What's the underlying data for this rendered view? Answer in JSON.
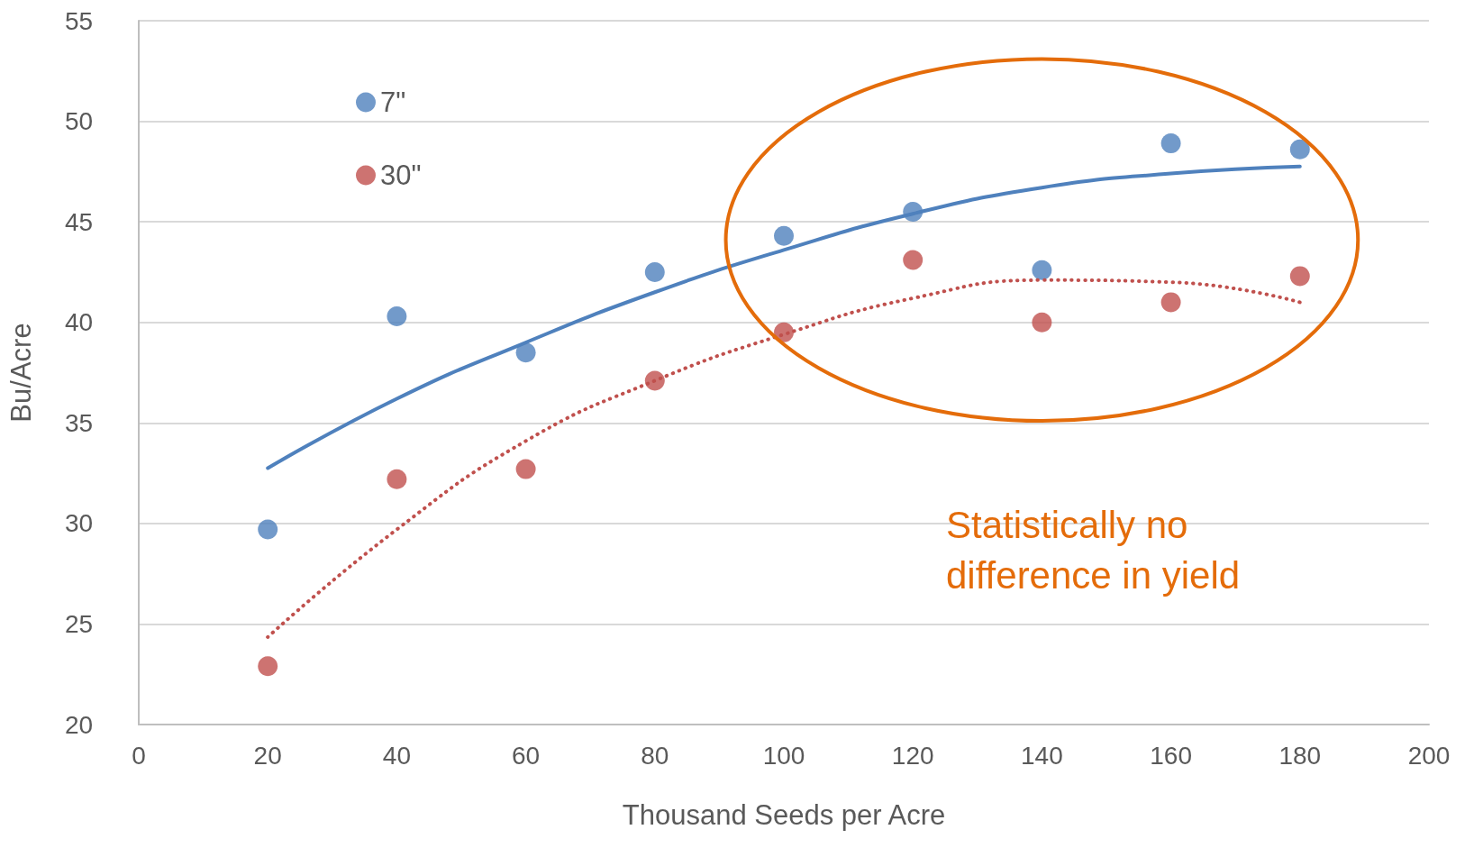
{
  "chart_data": {
    "type": "scatter",
    "xlabel": "Thousand Seeds per Acre",
    "ylabel": "Bu/Acre",
    "x": [
      20,
      40,
      60,
      80,
      100,
      120,
      140,
      160,
      180
    ],
    "xlim": [
      0,
      200
    ],
    "xticks": [
      0,
      20,
      40,
      60,
      80,
      100,
      120,
      140,
      160,
      180,
      200
    ],
    "ylim": [
      20,
      55
    ],
    "yticks": [
      20,
      25,
      30,
      35,
      40,
      45,
      50,
      55
    ],
    "grid": "y",
    "legend": "top left",
    "marker": "circle",
    "annotations": [
      "Statistically no difference in yield"
    ],
    "series": [
      {
        "name": "7\"",
        "color": "#4f81bd",
        "values": [
          29.7,
          40.3,
          38.5,
          42.5,
          44.3,
          45.5,
          42.6,
          48.9,
          48.6
        ]
      },
      {
        "name": "30\"",
        "color": "#c0504d",
        "values": [
          22.9,
          32.2,
          32.7,
          37.1,
          39.5,
          43.1,
          40.0,
          41.0,
          42.3
        ]
      },
      {
        "type": "line",
        "color": "#4f81bd",
        "line_style": "solid",
        "marker": "none",
        "x": [
          20,
          40,
          60,
          80,
          100,
          120,
          140,
          160,
          180
        ],
        "values": [
          32.75,
          36.2,
          39.0,
          41.5,
          43.6,
          45.4,
          46.7,
          47.4,
          47.75
        ]
      },
      {
        "type": "line",
        "color": "#c0504d",
        "line_style": "dotted",
        "marker": "none",
        "x": [
          20,
          40,
          60,
          80,
          100,
          120,
          140,
          160,
          180
        ],
        "values": [
          24.35,
          29.7,
          34.1,
          37.1,
          39.4,
          41.2,
          42.1,
          42.0,
          41.0
        ]
      }
    ]
  }
}
